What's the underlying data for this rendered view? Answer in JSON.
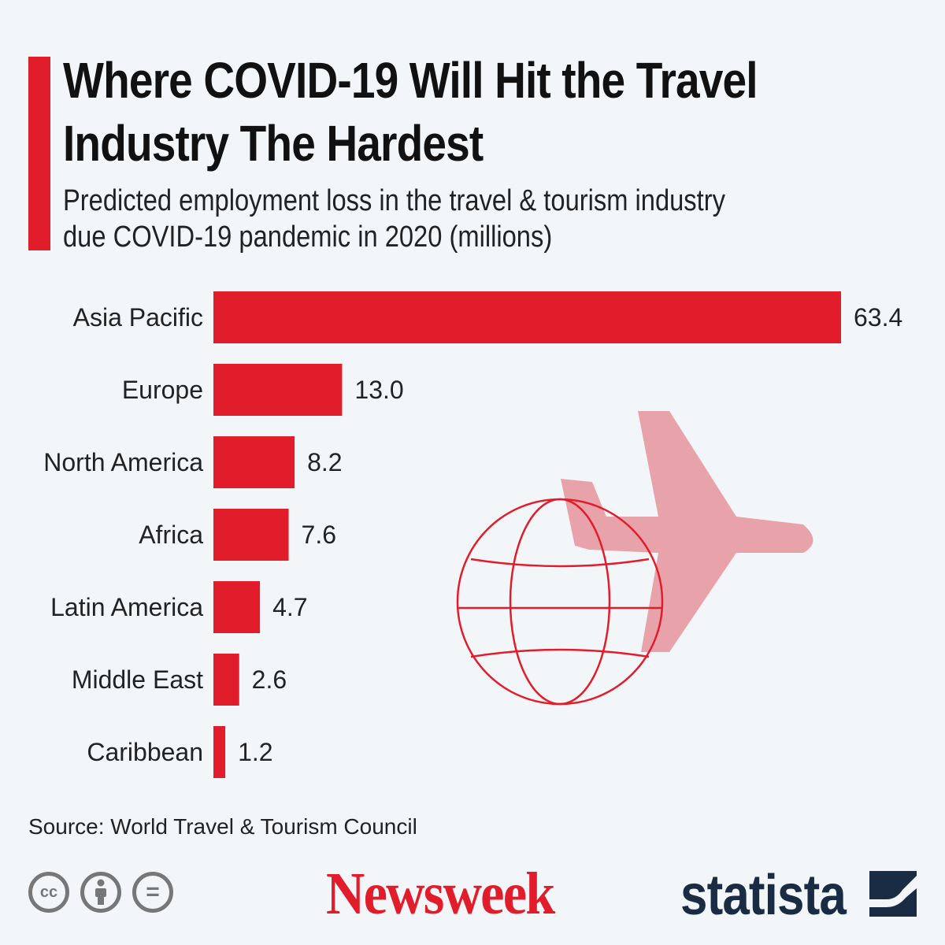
{
  "title_lines": [
    "Where COVID-19 Will Hit the Travel",
    "Industry The Hardest"
  ],
  "subtitle_lines": [
    "Predicted employment loss in the travel & tourism industry",
    "due COVID-19 pandemic in 2020 (millions)"
  ],
  "source": "Source: World Travel & Tourism Council",
  "logos": {
    "newsweek": "Newsweek",
    "statista": "statista"
  },
  "license_icons": [
    {
      "name": "creative-commons-icon",
      "glyph": "cc"
    },
    {
      "name": "attribution-icon",
      "glyph": ""
    },
    {
      "name": "no-derivatives-icon",
      "glyph": "="
    }
  ],
  "colors": {
    "bar": "#e11d2b",
    "plane": "#e8a3aa",
    "globe": "#e11d2b",
    "brand": "#e11d2b"
  },
  "chart_data": {
    "type": "bar",
    "orientation": "horizontal",
    "title": "Where COVID-19 Will Hit the Travel Industry The Hardest",
    "ylabel": "",
    "xlabel": "",
    "categories": [
      "Asia Pacific",
      "Europe",
      "North America",
      "Africa",
      "Latin America",
      "Middle East",
      "Caribbean"
    ],
    "values": [
      63.4,
      13.0,
      8.2,
      7.6,
      4.7,
      2.6,
      1.2
    ],
    "value_labels": [
      "63.4",
      "13.0",
      "8.2",
      "7.6",
      "4.7",
      "2.6",
      "1.2"
    ],
    "xlim": [
      0,
      63.4
    ],
    "grid": false,
    "legend": "none"
  }
}
